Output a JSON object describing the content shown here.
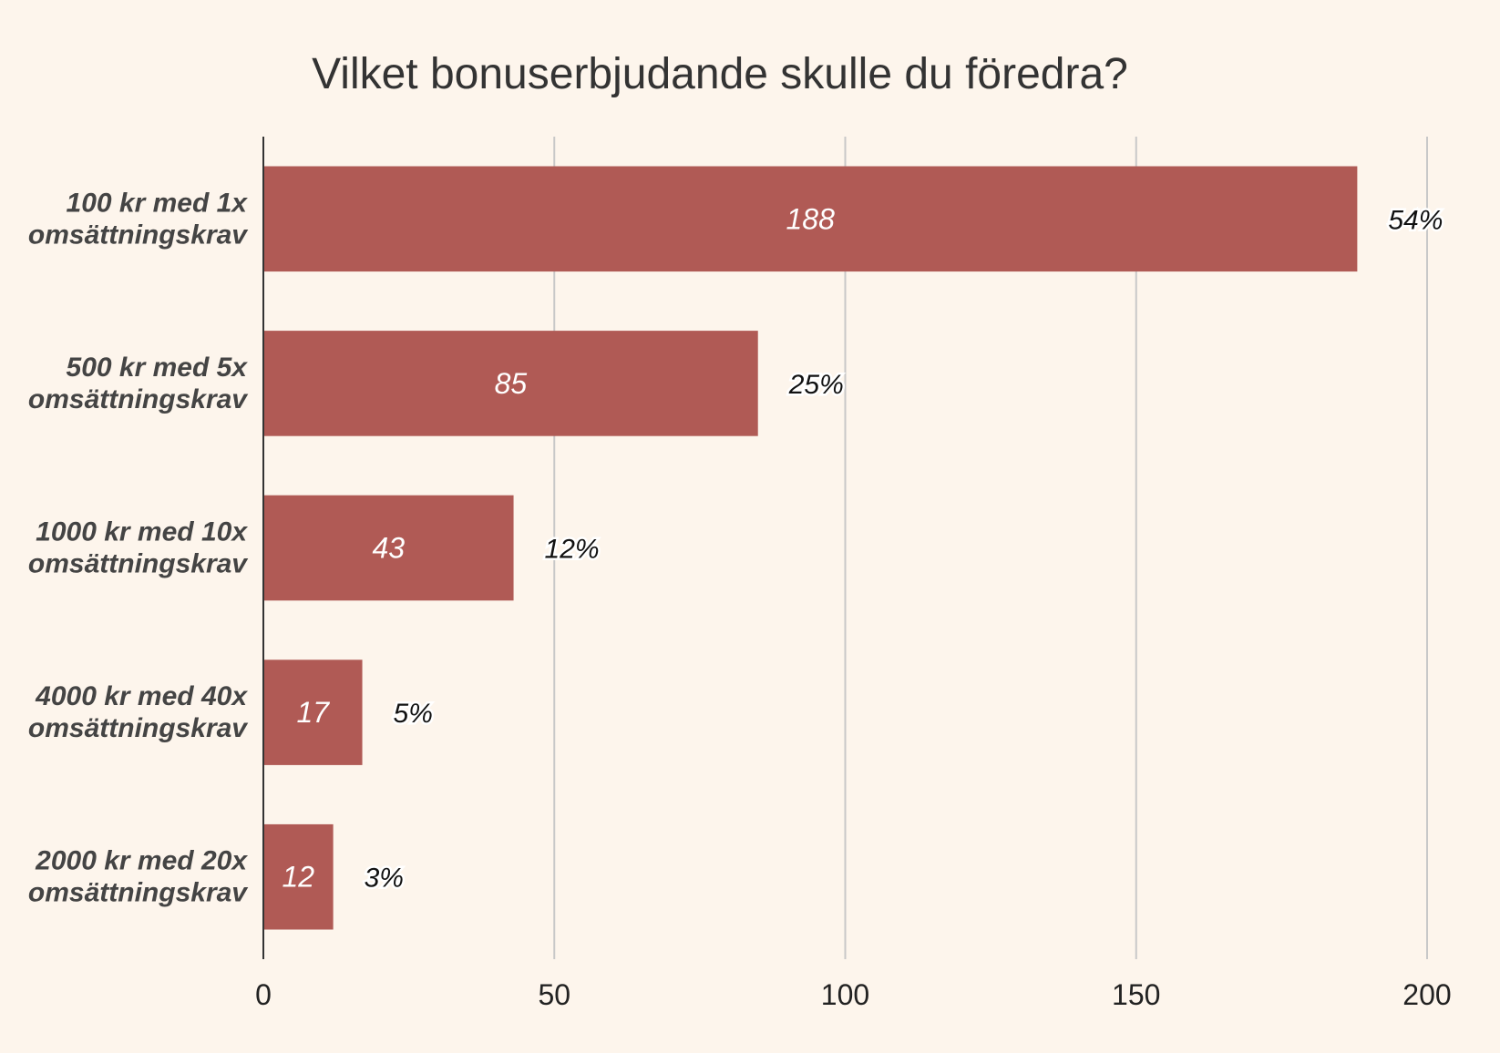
{
  "chart_data": {
    "type": "bar",
    "orientation": "horizontal",
    "title": "Vilket bonuserbjudande skulle du föredra?",
    "categories": [
      [
        "100 kr med 1x",
        "omsättningskrav"
      ],
      [
        "500 kr med 5x",
        "omsättningskrav"
      ],
      [
        "1000 kr med 10x",
        "omsättningskrav"
      ],
      [
        "4000 kr med 40x",
        "omsättningskrav"
      ],
      [
        "2000 kr med 20x",
        "omsättningskrav"
      ]
    ],
    "values": [
      188,
      85,
      43,
      17,
      12
    ],
    "value_labels": [
      "188",
      "85",
      "43",
      "17",
      "12"
    ],
    "percent_labels": [
      "54%",
      "25%",
      "12%",
      "5%",
      "3%"
    ],
    "xlim": [
      0,
      200
    ],
    "xticks": [
      0,
      50,
      100,
      150,
      200
    ],
    "xtick_labels": [
      "0",
      "50",
      "100",
      "150",
      "200"
    ],
    "grid": true,
    "bar_color": "#b05a55",
    "background_color": "#fdf5ec"
  }
}
